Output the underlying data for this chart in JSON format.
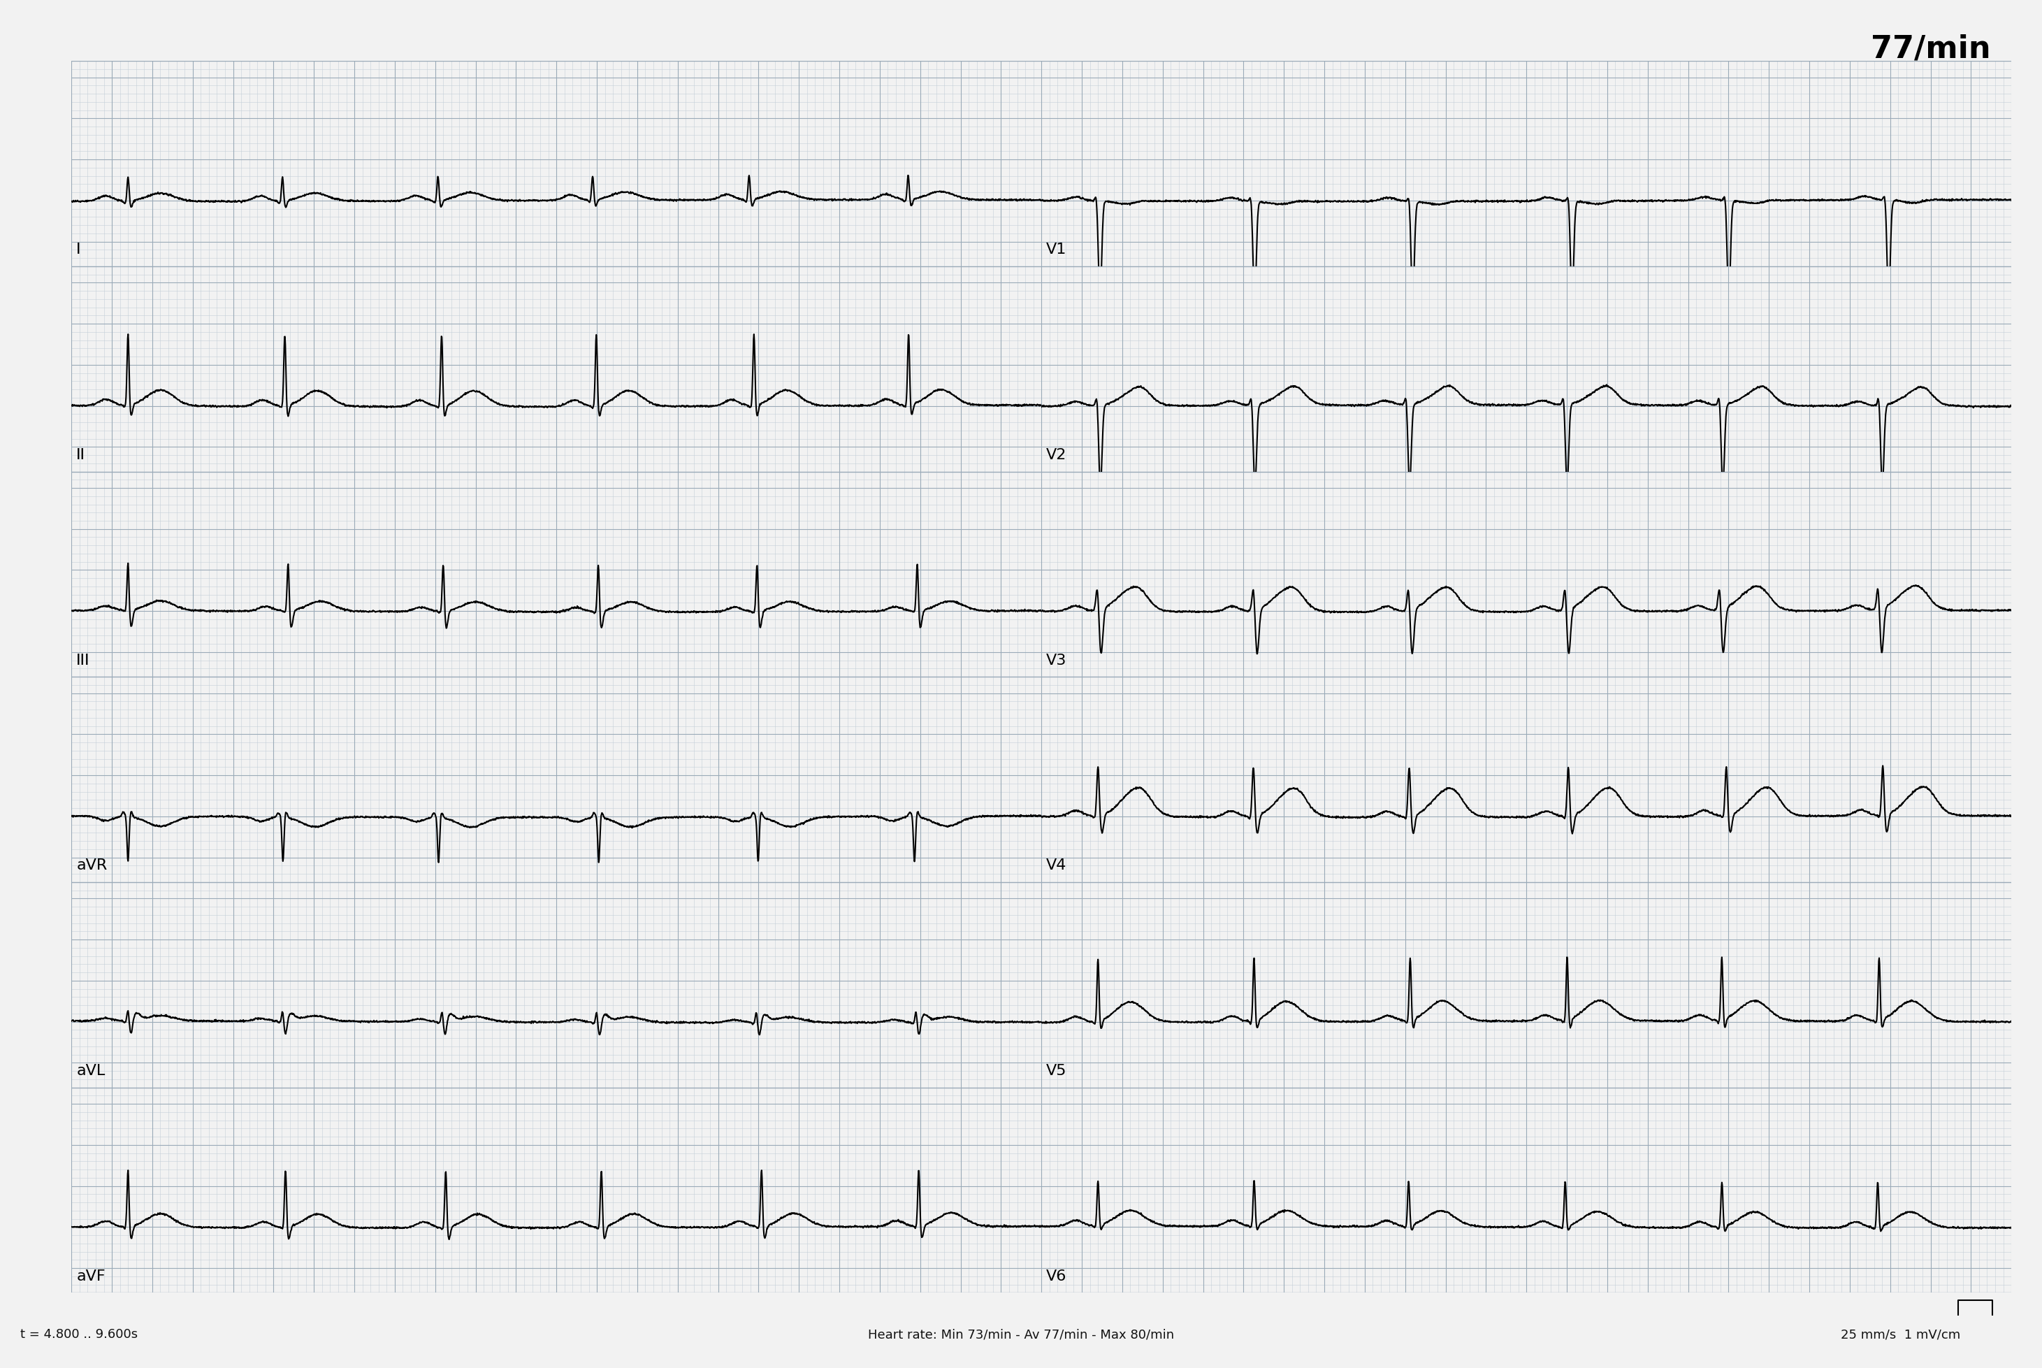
{
  "title": "77/min",
  "bottom_left": "t = 4.800 .. 9.600s",
  "bottom_center": "Heart rate: Min 73/min - Av 77/min - Max 80/min",
  "bottom_right": "25 mm/s  1 mV/cm",
  "leads_left": [
    "I",
    "II",
    "III",
    "aVR",
    "aVL",
    "aVF"
  ],
  "leads_right": [
    "V1",
    "V2",
    "V3",
    "V4",
    "V5",
    "V6"
  ],
  "background_color": "#f2f2f2",
  "grid_minor_color": "#c4cfd8",
  "grid_major_color": "#9aaab8",
  "ecg_color": "#000000",
  "title_color": "#000000",
  "label_color": "#000000",
  "ecg_linewidth": 1.5,
  "heart_rate": 77,
  "duration": 4.8,
  "sample_rate": 500,
  "title_fontsize": 32,
  "label_fontsize": 16,
  "footer_fontsize": 13
}
